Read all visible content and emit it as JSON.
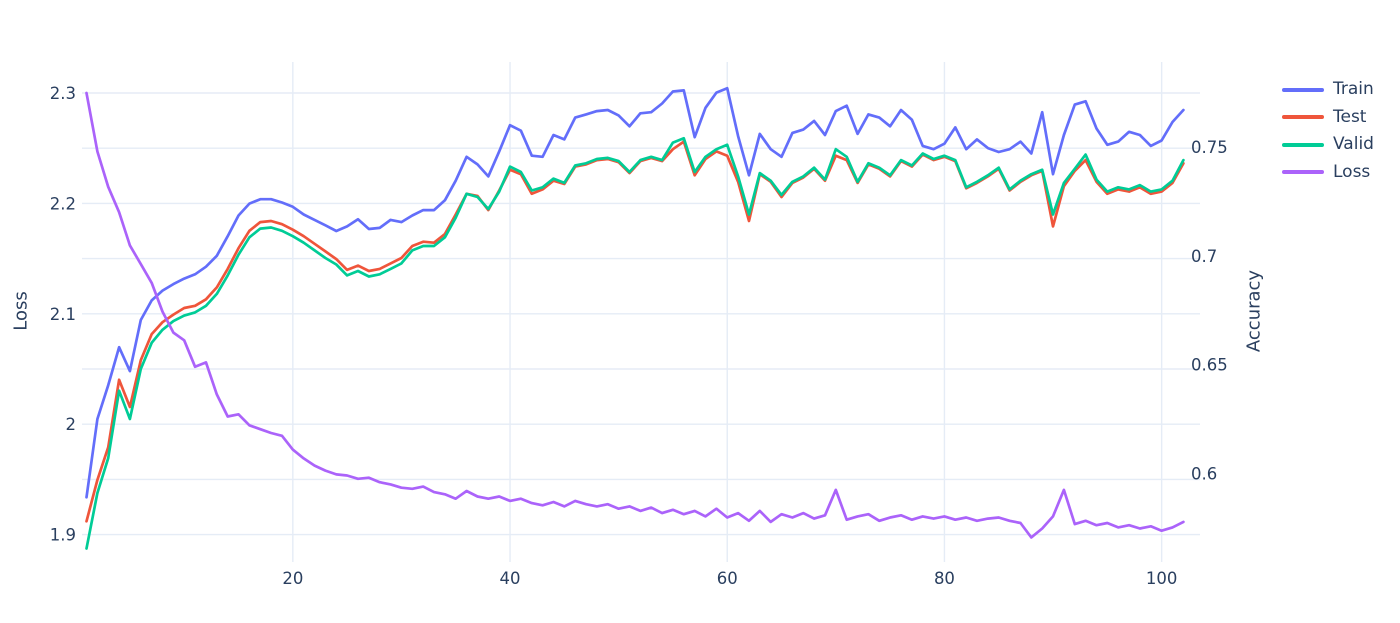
{
  "figure": {
    "background": "#ffffff",
    "text_color": "#2a3f5f",
    "grid_color": "#e5ecf6"
  },
  "chart_data": {
    "type": "line",
    "x_range": [
      1,
      102
    ],
    "x_axis": {
      "ticks": [
        "20",
        "40",
        "60",
        "80",
        "100"
      ],
      "tick_values": [
        20,
        40,
        60,
        80,
        100
      ],
      "title": ""
    },
    "left_axis": {
      "title": "Loss",
      "ticks": [
        "2.3",
        "2.2",
        "2.1",
        "2",
        "1.9"
      ],
      "tick_values": [
        2.3,
        2.2,
        2.1,
        2,
        1.9
      ],
      "grid_dtick": 0.05,
      "grid_min": 1.9,
      "grid_max": 2.3
    },
    "right_axis": {
      "title": "Accuracy",
      "ticks": [
        "0.75",
        "0.7",
        "0.65",
        "0.6"
      ],
      "tick_values": [
        0.75,
        0.7,
        0.65,
        0.6
      ]
    },
    "legend_position": "top-right-outside",
    "grid": true,
    "series": [
      {
        "name": "Train",
        "color": "#636efa",
        "axis": "right",
        "values": [
          0.589,
          0.625,
          0.6405,
          0.658,
          0.647,
          0.6705,
          0.6795,
          0.684,
          0.687,
          0.6895,
          0.6915,
          0.695,
          0.7,
          0.709,
          0.7185,
          0.724,
          0.726,
          0.726,
          0.7245,
          0.7225,
          0.719,
          0.7165,
          0.714,
          0.7114,
          0.7135,
          0.7168,
          0.7123,
          0.7128,
          0.7165,
          0.7155,
          0.7185,
          0.721,
          0.721,
          0.7255,
          0.7345,
          0.7455,
          0.742,
          0.7365,
          0.748,
          0.76,
          0.7575,
          0.746,
          0.7455,
          0.7555,
          0.7535,
          0.7635,
          0.765,
          0.7665,
          0.767,
          0.7645,
          0.7595,
          0.7655,
          0.766,
          0.77,
          0.7755,
          0.776,
          0.7545,
          0.768,
          0.775,
          0.777,
          0.755,
          0.737,
          0.756,
          0.749,
          0.7455,
          0.7565,
          0.758,
          0.762,
          0.7555,
          0.7665,
          0.769,
          0.756,
          0.765,
          0.7635,
          0.7595,
          0.767,
          0.7625,
          0.7505,
          0.749,
          0.7515,
          0.759,
          0.749,
          0.7535,
          0.7495,
          0.7477,
          0.749,
          0.7525,
          0.747,
          0.766,
          0.7375,
          0.7555,
          0.7695,
          0.771,
          0.7585,
          0.751,
          0.7525,
          0.757,
          0.7555,
          0.7505,
          0.753,
          0.7615,
          0.767
        ]
      },
      {
        "name": "Test",
        "color": "#ef553b",
        "axis": "right",
        "values": [
          0.578,
          0.597,
          0.612,
          0.643,
          0.6305,
          0.652,
          0.664,
          0.6695,
          0.673,
          0.676,
          0.677,
          0.68,
          0.6855,
          0.694,
          0.7035,
          0.7115,
          0.7155,
          0.716,
          0.7145,
          0.712,
          0.709,
          0.7055,
          0.702,
          0.6985,
          0.6935,
          0.6955,
          0.693,
          0.694,
          0.6965,
          0.699,
          0.7045,
          0.7065,
          0.706,
          0.71,
          0.719,
          0.7285,
          0.7275,
          0.721,
          0.73,
          0.7395,
          0.7375,
          0.7285,
          0.7305,
          0.7345,
          0.733,
          0.741,
          0.742,
          0.744,
          0.7445,
          0.743,
          0.738,
          0.7435,
          0.745,
          0.7435,
          0.749,
          0.7525,
          0.737,
          0.7445,
          0.748,
          0.746,
          0.734,
          0.716,
          0.7375,
          0.734,
          0.727,
          0.7335,
          0.736,
          0.74,
          0.7345,
          0.746,
          0.744,
          0.7335,
          0.742,
          0.74,
          0.7365,
          0.7435,
          0.741,
          0.7465,
          0.744,
          0.7455,
          0.7435,
          0.731,
          0.7335,
          0.7365,
          0.74,
          0.73,
          0.734,
          0.737,
          0.739,
          0.7135,
          0.732,
          0.739,
          0.744,
          0.734,
          0.7285,
          0.7305,
          0.7295,
          0.7315,
          0.7285,
          0.7295,
          0.7335,
          0.7425
        ]
      },
      {
        "name": "Valid",
        "color": "#00cc96",
        "axis": "right",
        "values": [
          0.5655,
          0.591,
          0.607,
          0.638,
          0.625,
          0.648,
          0.66,
          0.666,
          0.67,
          0.6725,
          0.674,
          0.677,
          0.6825,
          0.691,
          0.7005,
          0.7085,
          0.7125,
          0.713,
          0.7115,
          0.709,
          0.706,
          0.7025,
          0.699,
          0.696,
          0.691,
          0.693,
          0.6905,
          0.6915,
          0.694,
          0.6965,
          0.7025,
          0.7045,
          0.7045,
          0.7085,
          0.7175,
          0.7285,
          0.727,
          0.7215,
          0.7295,
          0.741,
          0.7385,
          0.73,
          0.7315,
          0.7355,
          0.7335,
          0.7415,
          0.7425,
          0.7445,
          0.745,
          0.7435,
          0.7385,
          0.744,
          0.7455,
          0.744,
          0.752,
          0.754,
          0.7385,
          0.7455,
          0.749,
          0.751,
          0.7365,
          0.719,
          0.738,
          0.7345,
          0.728,
          0.734,
          0.7365,
          0.7405,
          0.735,
          0.749,
          0.7455,
          0.734,
          0.7425,
          0.7405,
          0.737,
          0.744,
          0.7415,
          0.747,
          0.7445,
          0.746,
          0.744,
          0.7315,
          0.734,
          0.737,
          0.7405,
          0.7305,
          0.7345,
          0.7375,
          0.7395,
          0.719,
          0.7335,
          0.74,
          0.7465,
          0.735,
          0.7295,
          0.7315,
          0.7305,
          0.7325,
          0.7295,
          0.7305,
          0.7345,
          0.744
        ]
      },
      {
        "name": "Loss",
        "color": "#ab63fa",
        "axis": "left",
        "values": [
          2.3,
          2.247,
          2.215,
          2.192,
          2.162,
          2.145,
          2.128,
          2.102,
          2.083,
          2.076,
          2.052,
          2.056,
          2.027,
          2.007,
          2.009,
          1.999,
          1.9955,
          1.992,
          1.9895,
          1.977,
          1.969,
          1.9625,
          1.958,
          1.9545,
          1.9535,
          1.9505,
          1.9515,
          1.9475,
          1.9455,
          1.9425,
          1.9415,
          1.9435,
          1.9385,
          1.9365,
          1.9325,
          1.9395,
          1.9345,
          1.9325,
          1.9345,
          1.9305,
          1.9325,
          1.9285,
          1.9265,
          1.9295,
          1.9255,
          1.9305,
          1.9275,
          1.9255,
          1.9275,
          1.9235,
          1.9255,
          1.9215,
          1.9245,
          1.9195,
          1.9225,
          1.9185,
          1.9215,
          1.9165,
          1.9235,
          1.9155,
          1.9195,
          1.9125,
          1.9215,
          1.9115,
          1.9185,
          1.9155,
          1.9195,
          1.9145,
          1.9175,
          1.9405,
          1.9135,
          1.9165,
          1.9185,
          1.9125,
          1.9155,
          1.9175,
          1.9135,
          1.9165,
          1.9145,
          1.9165,
          1.9135,
          1.9155,
          1.9125,
          1.9145,
          1.9155,
          1.9125,
          1.9105,
          1.8975,
          1.9055,
          1.9165,
          1.9405,
          1.9095,
          1.9125,
          1.9085,
          1.9105,
          1.9065,
          1.9085,
          1.9055,
          1.9075,
          1.9035,
          1.9065,
          1.9115
        ]
      }
    ]
  }
}
